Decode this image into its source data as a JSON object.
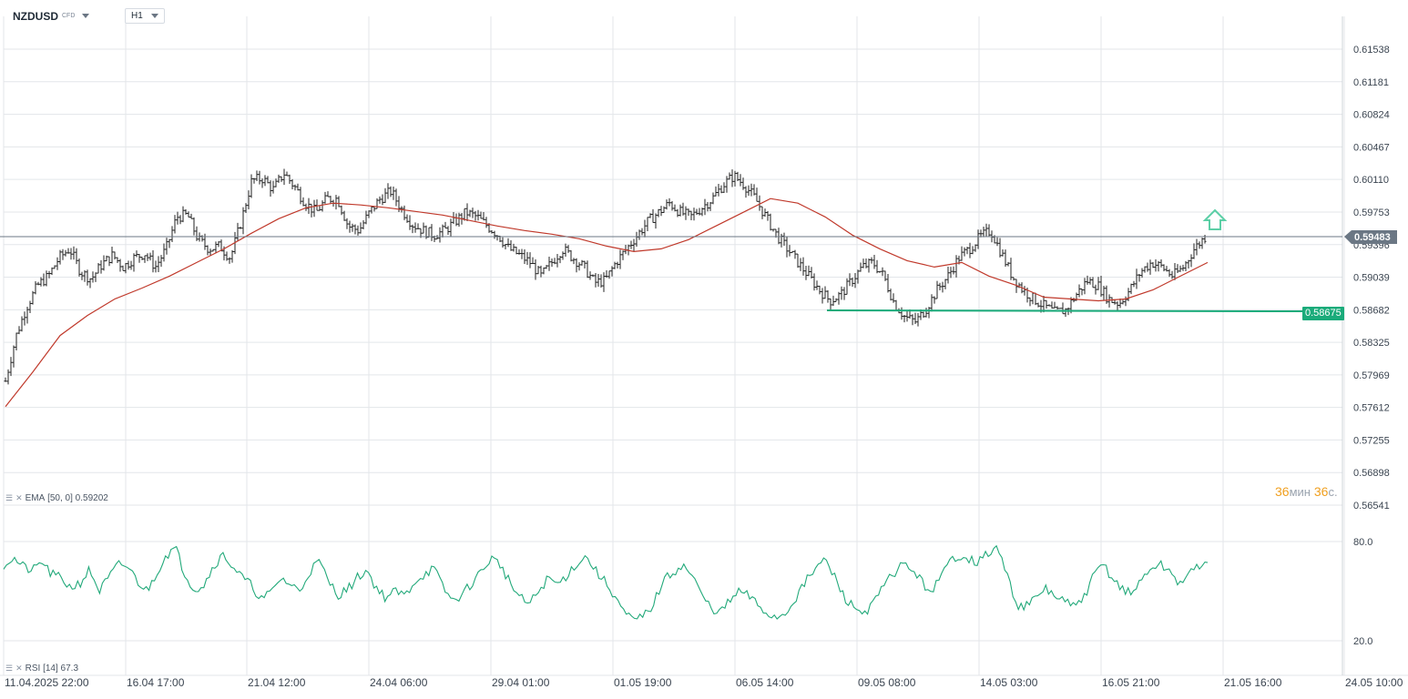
{
  "symbol": {
    "name": "NZDUSD",
    "type": "CFD"
  },
  "timeframe": "H1",
  "price_axis": [
    "0.61538",
    "0.61181",
    "0.60824",
    "0.60467",
    "0.60110",
    "0.59753",
    "0.59396",
    "0.59039",
    "0.58682",
    "0.58325",
    "0.57969",
    "0.57612",
    "0.57255",
    "0.56898",
    "0.56541"
  ],
  "current_price": "0.59483",
  "support_level": "0.58675",
  "time_axis": [
    "11.04.2025  22:00",
    "16.04  17:00",
    "21.04  12:00",
    "24.04  06:00",
    "29.04  01:00",
    "01.05  19:00",
    "06.05  14:00",
    "09.05  08:00",
    "14.05  03:00",
    "16.05  21:00",
    "21.05  16:00",
    "24.05  10:00"
  ],
  "ema_label": {
    "name": "EMA",
    "params": "[50, 0]",
    "value": "0.59202"
  },
  "rsi_label": {
    "name": "RSI",
    "params": "[14]",
    "value": "67.3"
  },
  "rsi_axis": [
    "80.0",
    "20.0"
  ],
  "timer": {
    "min": "36",
    "min_unit": "мин",
    "sec": "36",
    "sec_unit": "с."
  },
  "colors": {
    "candle": "#222222",
    "ema": "#c0392b",
    "support": "#1aab7a",
    "rsi": "#22a97a",
    "grid": "#e3e6ea",
    "current_price": "#6b7784",
    "arrow": "#5ccfa6"
  },
  "chart_data": [
    {
      "type": "line",
      "note_series": "hourly price (close), black OHLC bars",
      "x_labels": [
        "11.04.2025 22:00",
        "16.04 17:00",
        "21.04 12:00",
        "24.04 06:00",
        "29.04 01:00",
        "01.05 19:00",
        "06.05 14:00",
        "09.05 08:00",
        "14.05 03:00",
        "16.05 21:00",
        "21.05 16:00",
        "24.05 10:00"
      ],
      "series": [
        {
          "name": "NZDUSD",
          "values": [
            0.579,
            0.584,
            0.5872,
            0.5895,
            0.5905,
            0.5925,
            0.5935,
            0.591,
            0.5902,
            0.5918,
            0.5928,
            0.5915,
            0.5925,
            0.593,
            0.5915,
            0.5935,
            0.597,
            0.5972,
            0.5945,
            0.5935,
            0.5938,
            0.5925,
            0.5965,
            0.601,
            0.6012,
            0.6,
            0.6018,
            0.6003,
            0.5985,
            0.5975,
            0.599,
            0.599,
            0.596,
            0.5955,
            0.5975,
            0.599,
            0.5998,
            0.5978,
            0.5962,
            0.5955,
            0.595,
            0.5955,
            0.5965,
            0.5975,
            0.597,
            0.596,
            0.595,
            0.5935,
            0.5928,
            0.592,
            0.5905,
            0.592,
            0.5935,
            0.5925,
            0.5915,
            0.5898,
            0.59,
            0.592,
            0.5935,
            0.595,
            0.5965,
            0.5975,
            0.5985,
            0.5975,
            0.597,
            0.598,
            0.599,
            0.6005,
            0.6015,
            0.6005,
            0.599,
            0.597,
            0.595,
            0.5935,
            0.592,
            0.5905,
            0.589,
            0.5878,
            0.5885,
            0.59,
            0.5915,
            0.592,
            0.5905,
            0.5875,
            0.586,
            0.5855,
            0.587,
            0.589,
            0.5905,
            0.5925,
            0.5935,
            0.5948,
            0.5955,
            0.593,
            0.5905,
            0.589,
            0.588,
            0.5872,
            0.5865,
            0.5868,
            0.5885,
            0.59,
            0.5895,
            0.588,
            0.5875,
            0.589,
            0.591,
            0.592,
            0.5915,
            0.5905,
            0.5915,
            0.5935,
            0.5948
          ]
        },
        {
          "name": "EMA [50, 0]",
          "values": [
            0.5762,
            0.58,
            0.584,
            0.5862,
            0.588,
            0.5892,
            0.5905,
            0.592,
            0.5935,
            0.5952,
            0.5968,
            0.598,
            0.5985,
            0.5983,
            0.598,
            0.5976,
            0.5972,
            0.5966,
            0.596,
            0.5955,
            0.5951,
            0.5946,
            0.5938,
            0.5932,
            0.5935,
            0.5945,
            0.596,
            0.5975,
            0.599,
            0.5985,
            0.597,
            0.595,
            0.5935,
            0.5922,
            0.5915,
            0.592,
            0.5905,
            0.5895,
            0.5882,
            0.588,
            0.5878,
            0.588,
            0.589,
            0.5905,
            0.592
          ]
        }
      ],
      "ylim": [
        0.56541,
        0.61538
      ]
    },
    {
      "type": "line",
      "series": [
        {
          "name": "RSI [14]",
          "values": [
            66,
            70,
            65,
            62,
            68,
            60,
            58,
            52,
            55,
            63,
            50,
            58,
            66,
            65,
            56,
            50,
            61,
            72,
            76,
            60,
            51,
            54,
            66,
            72,
            65,
            58,
            53,
            45,
            49,
            58,
            54,
            50,
            62,
            68,
            56,
            48,
            51,
            58,
            63,
            52,
            46,
            50,
            47,
            56,
            60,
            64,
            52,
            44,
            48,
            55,
            62,
            70,
            66,
            55,
            46,
            42,
            50,
            58,
            54,
            60,
            67,
            71,
            62,
            55,
            47,
            36,
            32,
            35,
            42,
            56,
            61,
            66,
            60,
            48,
            40,
            37,
            44,
            50,
            47,
            41,
            36,
            34,
            38,
            47,
            56,
            64,
            69,
            58,
            46,
            40,
            37,
            42,
            52,
            60,
            66,
            64,
            56,
            50,
            57,
            68,
            72,
            70,
            67,
            73,
            76,
            60,
            42,
            41,
            45,
            52,
            47,
            44,
            40,
            46,
            58,
            67,
            58,
            52,
            48,
            56,
            64,
            66,
            62,
            55,
            59,
            66,
            67.3
          ]
        }
      ],
      "ylim": [
        10,
        90
      ],
      "ylabel": ""
    }
  ]
}
